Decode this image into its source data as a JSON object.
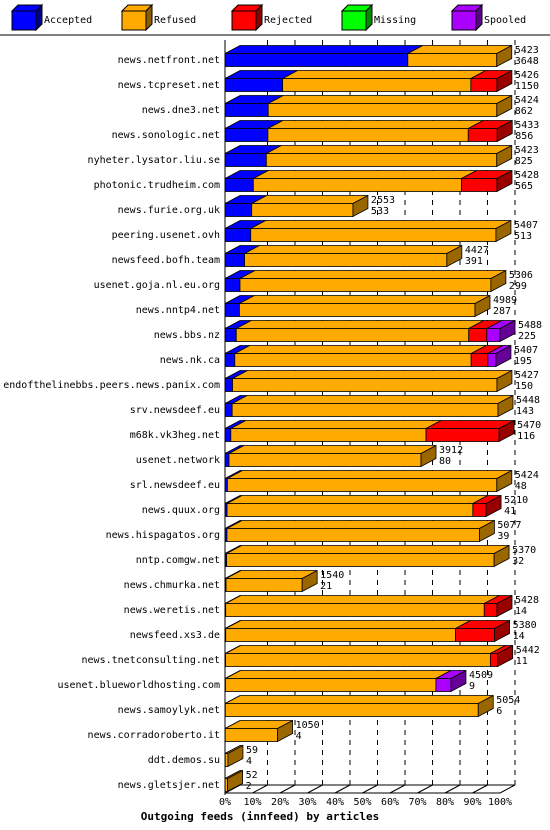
{
  "chart_data": {
    "type": "bar",
    "stacked": true,
    "orientation": "horizontal",
    "xlabel": "Outgoing feeds (innfeed) by articles",
    "x_tick_labels": [
      "0%",
      "10%",
      "20%",
      "30%",
      "40%",
      "50%",
      "60%",
      "70%",
      "80%",
      "90%",
      "100%"
    ],
    "xlim": [
      0,
      100
    ],
    "grid": true,
    "legend_position": "top",
    "legend": [
      {
        "name": "Accepted",
        "color": "#0000ff"
      },
      {
        "name": "Refused",
        "color": "#ffaa00"
      },
      {
        "name": "Rejected",
        "color": "#ff0000"
      },
      {
        "name": "Missing",
        "color": "#00ff00"
      },
      {
        "name": "Spooled",
        "color": "#aa00ff"
      }
    ],
    "max_offered": 5488,
    "rows": [
      {
        "site": "news.netfront.net",
        "offered": "5423",
        "accepted": "3648",
        "values": {
          "accepted": 3648,
          "refused": 1775,
          "rejected": 0,
          "missing": 0,
          "spooled": 0
        }
      },
      {
        "site": "news.tcpreset.net",
        "offered": "5426",
        "accepted": "1150",
        "values": {
          "accepted": 1150,
          "refused": 3756,
          "rejected": 520,
          "missing": 0,
          "spooled": 0
        }
      },
      {
        "site": "news.dne3.net",
        "offered": "5424",
        "accepted": "862",
        "values": {
          "accepted": 862,
          "refused": 4562,
          "rejected": 0,
          "missing": 0,
          "spooled": 0
        }
      },
      {
        "site": "news.sonologic.net",
        "offered": "5433",
        "accepted": "856",
        "values": {
          "accepted": 856,
          "refused": 3999,
          "rejected": 578,
          "missing": 0,
          "spooled": 0
        }
      },
      {
        "site": "nyheter.lysator.liu.se",
        "offered": "5423",
        "accepted": "825",
        "values": {
          "accepted": 825,
          "refused": 4598,
          "rejected": 0,
          "missing": 0,
          "spooled": 0
        }
      },
      {
        "site": "photonic.trudheim.com",
        "offered": "5428",
        "accepted": "565",
        "values": {
          "accepted": 565,
          "refused": 4156,
          "rejected": 707,
          "missing": 0,
          "spooled": 0
        }
      },
      {
        "site": "news.furie.org.uk",
        "offered": "2553",
        "accepted": "533",
        "values": {
          "accepted": 533,
          "refused": 2020,
          "rejected": 0,
          "missing": 0,
          "spooled": 0
        }
      },
      {
        "site": "peering.usenet.ovh",
        "offered": "5407",
        "accepted": "513",
        "values": {
          "accepted": 513,
          "refused": 4894,
          "rejected": 0,
          "missing": 0,
          "spooled": 0
        }
      },
      {
        "site": "newsfeed.bofh.team",
        "offered": "4427",
        "accepted": "391",
        "values": {
          "accepted": 391,
          "refused": 4036,
          "rejected": 0,
          "missing": 0,
          "spooled": 0
        }
      },
      {
        "site": "usenet.goja.nl.eu.org",
        "offered": "5306",
        "accepted": "299",
        "values": {
          "accepted": 299,
          "refused": 5007,
          "rejected": 0,
          "missing": 0,
          "spooled": 0
        }
      },
      {
        "site": "news.nntp4.net",
        "offered": "4989",
        "accepted": "287",
        "values": {
          "accepted": 287,
          "refused": 4702,
          "rejected": 0,
          "missing": 0,
          "spooled": 0
        }
      },
      {
        "site": "news.bbs.nz",
        "offered": "5488",
        "accepted": "225",
        "values": {
          "accepted": 225,
          "refused": 4639,
          "rejected": 360,
          "missing": 0,
          "spooled": 264
        }
      },
      {
        "site": "news.nk.ca",
        "offered": "5407",
        "accepted": "195",
        "values": {
          "accepted": 195,
          "refused": 4718,
          "rejected": 333,
          "missing": 0,
          "spooled": 161
        }
      },
      {
        "site": "endofthelinebbs.peers.news.panix.com",
        "offered": "5427",
        "accepted": "150",
        "values": {
          "accepted": 150,
          "refused": 5277,
          "rejected": 0,
          "missing": 0,
          "spooled": 0
        }
      },
      {
        "site": "srv.newsdeef.eu",
        "offered": "5448",
        "accepted": "143",
        "values": {
          "accepted": 143,
          "refused": 5305,
          "rejected": 0,
          "missing": 0,
          "spooled": 0
        }
      },
      {
        "site": "m68k.vk3heg.net",
        "offered": "5470",
        "accepted": "116",
        "values": {
          "accepted": 116,
          "refused": 3896,
          "rejected": 1458,
          "missing": 0,
          "spooled": 0
        }
      },
      {
        "site": "usenet.network",
        "offered": "3912",
        "accepted": "80",
        "values": {
          "accepted": 80,
          "refused": 3832,
          "rejected": 0,
          "missing": 0,
          "spooled": 0
        }
      },
      {
        "site": "srl.newsdeef.eu",
        "offered": "5424",
        "accepted": "48",
        "values": {
          "accepted": 48,
          "refused": 5376,
          "rejected": 0,
          "missing": 0,
          "spooled": 0
        }
      },
      {
        "site": "news.quux.org",
        "offered": "5210",
        "accepted": "41",
        "values": {
          "accepted": 41,
          "refused": 4905,
          "rejected": 264,
          "missing": 0,
          "spooled": 0
        }
      },
      {
        "site": "news.hispagatos.org",
        "offered": "5077",
        "accepted": "39",
        "values": {
          "accepted": 39,
          "refused": 5038,
          "rejected": 0,
          "missing": 0,
          "spooled": 0
        }
      },
      {
        "site": "nntp.comgw.net",
        "offered": "5370",
        "accepted": "32",
        "values": {
          "accepted": 32,
          "refused": 5338,
          "rejected": 0,
          "missing": 0,
          "spooled": 0
        }
      },
      {
        "site": "news.chmurka.net",
        "offered": "1540",
        "accepted": "21",
        "values": {
          "accepted": 21,
          "refused": 1519,
          "rejected": 0,
          "missing": 0,
          "spooled": 0
        }
      },
      {
        "site": "news.weretis.net",
        "offered": "5428",
        "accepted": "14",
        "values": {
          "accepted": 14,
          "refused": 5160,
          "rejected": 254,
          "missing": 0,
          "spooled": 0
        }
      },
      {
        "site": "newsfeed.xs3.de",
        "offered": "5380",
        "accepted": "14",
        "values": {
          "accepted": 14,
          "refused": 4586,
          "rejected": 780,
          "missing": 0,
          "spooled": 0
        }
      },
      {
        "site": "news.tnetconsulting.net",
        "offered": "5442",
        "accepted": "11",
        "values": {
          "accepted": 11,
          "refused": 5285,
          "rejected": 146,
          "missing": 0,
          "spooled": 0
        }
      },
      {
        "site": "usenet.blueworldhosting.com",
        "offered": "4509",
        "accepted": "9",
        "values": {
          "accepted": 9,
          "refused": 4200,
          "rejected": 0,
          "missing": 0,
          "spooled": 300
        }
      },
      {
        "site": "news.samoylyk.net",
        "offered": "5054",
        "accepted": "6",
        "values": {
          "accepted": 6,
          "refused": 5048,
          "rejected": 0,
          "missing": 0,
          "spooled": 0
        }
      },
      {
        "site": "news.corradoroberto.it",
        "offered": "1050",
        "accepted": "4",
        "values": {
          "accepted": 4,
          "refused": 1046,
          "rejected": 0,
          "missing": 0,
          "spooled": 0
        }
      },
      {
        "site": "ddt.demos.su",
        "offered": "59",
        "accepted": "4",
        "values": {
          "accepted": 4,
          "refused": 55,
          "rejected": 0,
          "missing": 0,
          "spooled": 0
        }
      },
      {
        "site": "news.gletsjer.net",
        "offered": "52",
        "accepted": "2",
        "values": {
          "accepted": 2,
          "refused": 50,
          "rejected": 0,
          "missing": 0,
          "spooled": 0
        }
      }
    ]
  }
}
